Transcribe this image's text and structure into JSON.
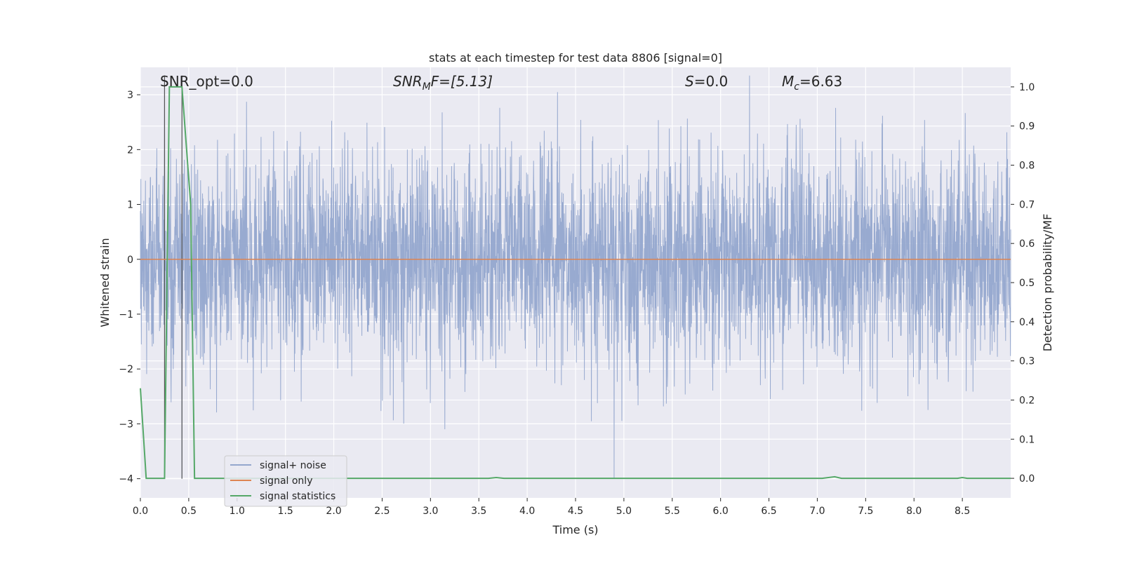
{
  "chart_data": {
    "type": "line",
    "title": "stats at each timestep for test data 8806 [signal=0]",
    "xlabel": "Time (s)",
    "ylabel": "Whitened strain",
    "ylabel_right": "Detection probability/MF",
    "xlim": [
      0,
      9.0
    ],
    "ylim": [
      -4.35,
      3.5
    ],
    "ylim_right": [
      -0.05,
      1.05
    ],
    "x_ticks": [
      "0.0",
      "0.5",
      "1.0",
      "1.5",
      "2.0",
      "2.5",
      "3.0",
      "3.5",
      "4.0",
      "4.5",
      "5.0",
      "5.5",
      "6.0",
      "6.5",
      "7.0",
      "7.5",
      "8.0",
      "8.5"
    ],
    "y_ticks": [
      "3",
      "2",
      "1",
      "0",
      "−1",
      "−2",
      "−3",
      "−4"
    ],
    "y_ticks_right": [
      "1.0",
      "0.9",
      "0.8",
      "0.7",
      "0.6",
      "0.5",
      "0.4",
      "0.3",
      "0.2",
      "0.1",
      "0.0"
    ],
    "grid": true,
    "legend_position": "lower-left",
    "annotations": {
      "snr_opt": "SNR_opt=0.0",
      "snr_mf_main": "SNR",
      "snr_mf_sub": "M",
      "snr_mf_rest": "F=[5.13]",
      "s_main": "S",
      "s_rest": "=0.0",
      "mc_main": "M",
      "mc_sub": "c",
      "mc_rest": "=6.63"
    },
    "vertical_markers_x": [
      0.25,
      0.43
    ],
    "series": [
      {
        "name": "signal+ noise",
        "color": "#94a7cd",
        "description_range": [
          -4.0,
          3.35
        ],
        "values_note": "whitened noise, approx. Gaussian, sigma ~0.95",
        "extremes": [
          [
            0.25,
            3.35
          ],
          [
            0.43,
            -4.0
          ],
          [
            4.9,
            -4.0
          ],
          [
            6.3,
            3.35
          ]
        ]
      },
      {
        "name": "signal only",
        "color": "#dd8452",
        "constant_value": 0.0
      },
      {
        "name": "signal statistics",
        "color": "#55a868",
        "axis": "right",
        "x": [
          0.0,
          0.06,
          0.2,
          0.25,
          0.3,
          0.43,
          0.52,
          0.56,
          3.6,
          3.68,
          3.76,
          7.05,
          7.18,
          7.25,
          8.45,
          8.5,
          8.55,
          9.0
        ],
        "y": [
          0.23,
          0.0,
          0.0,
          0.0,
          1.0,
          1.0,
          0.7,
          0.0,
          0.0,
          0.002,
          0.0,
          0.0,
          0.004,
          0.0,
          0.0,
          0.002,
          0.0,
          0.0
        ]
      }
    ]
  }
}
